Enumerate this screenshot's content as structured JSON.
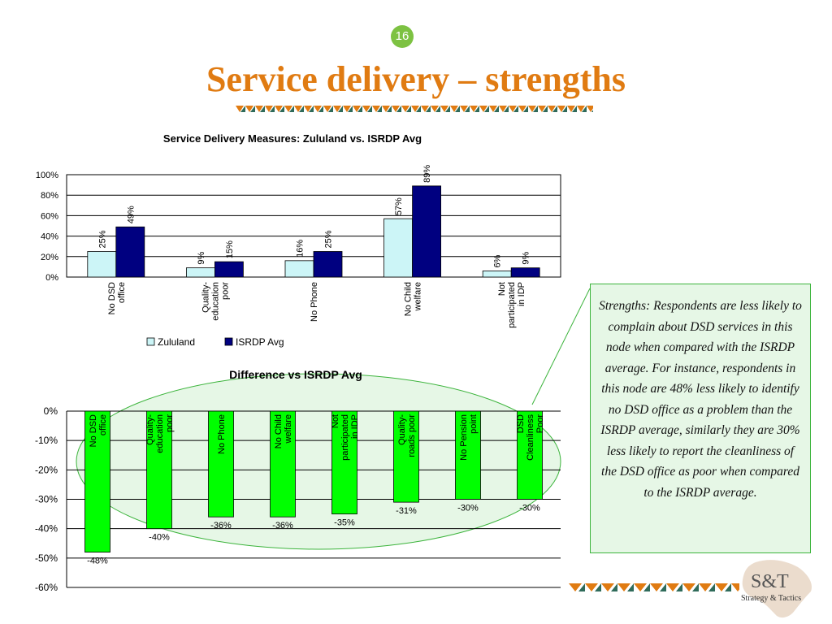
{
  "slide": {
    "number": "16",
    "title": "Service delivery – strengths",
    "note": "Strengths: Respondents are less likely to complain about DSD services in this node when compared with the ISRDP average. For instance, respondents in this node are 48% less likely to identify no DSD office as a problem than the ISRDP average, similarly they are 30% less likely to report the cleanliness of  the DSD office as poor when compared to the ISRDP average.",
    "logo": "S&T",
    "logo_sub": "Strategy & Tactics",
    "colors": {
      "accent_orange": "#e07b12",
      "accent_green": "#7dc242",
      "zululand": "#ccf5f7",
      "isrdp": "#000080",
      "difference": "#00ff00"
    }
  },
  "chart_data": [
    {
      "type": "bar",
      "title": "Service Delivery Measures: Zululand vs. ISRDP Avg",
      "categories": [
        "No DSD office",
        "Quality- education poor",
        "No Phone",
        "No Child welfare",
        "Not participated in IDP"
      ],
      "series": [
        {
          "name": "Zululand",
          "values": [
            25,
            9,
            16,
            57,
            6
          ]
        },
        {
          "name": "ISRDP Avg",
          "values": [
            49,
            15,
            25,
            89,
            9
          ]
        }
      ],
      "ylim": [
        0,
        100
      ],
      "yticks": [
        "100%",
        "80%",
        "60%",
        "40%",
        "20%",
        "0%"
      ],
      "grid": true,
      "legend": "bottom"
    },
    {
      "type": "bar",
      "title": "Difference vs ISRDP Avg",
      "categories": [
        "No DSD office",
        "Quality- education poor",
        "No Phone",
        "No Child welfare",
        "Not participated in IDP",
        "Quality- roads poor",
        "No Pension point",
        "DSD Cleanliness Poor"
      ],
      "values": [
        -48,
        -40,
        -36,
        -36,
        -35,
        -31,
        -30,
        -30
      ],
      "ylim": [
        -60,
        0
      ],
      "yticks": [
        "0%",
        "-10%",
        "-20%",
        "-30%",
        "-40%",
        "-50%",
        "-60%"
      ],
      "grid": true
    }
  ]
}
